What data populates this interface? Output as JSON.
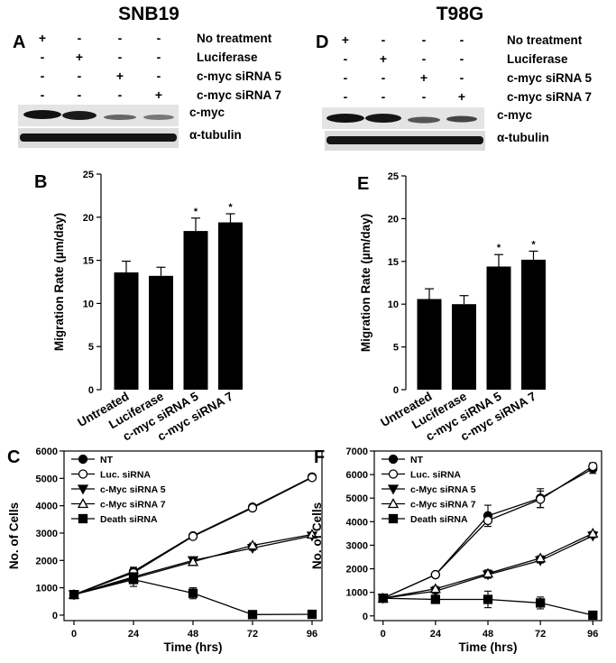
{
  "figure": {
    "titles": [
      "SNB19",
      "T98G"
    ],
    "letters": [
      "A",
      "D"
    ],
    "treatments": [
      "No treatment",
      "Luciferase",
      "c-myc siRNA 5",
      "c-myc siRNA 7"
    ],
    "signs": [
      [
        "+",
        "-",
        "-",
        "-"
      ],
      [
        "-",
        "+",
        "-",
        "-"
      ],
      [
        "-",
        "-",
        "+",
        "-"
      ],
      [
        "-",
        "-",
        "-",
        "+"
      ]
    ],
    "bands": [
      "c-myc",
      "α-tubulin"
    ]
  },
  "chart_data": [
    {
      "type": "bar",
      "letter": "B",
      "y_label": "Migration Rate (µm/day)",
      "categories": [
        "Untreated",
        "Luciferase",
        "c-myc siRNA 5",
        "c-myc siRNA 7"
      ],
      "values": [
        13.6,
        13.2,
        18.4,
        19.4
      ],
      "errors": [
        1.3,
        1.0,
        1.5,
        1.0
      ],
      "color": "#000000",
      "annotations": [
        {
          "index": 2,
          "text": "*"
        },
        {
          "index": 3,
          "text": "*"
        }
      ],
      "ylim": [
        0,
        25
      ],
      "yticks": [
        0,
        5,
        10,
        15,
        20,
        25
      ]
    },
    {
      "type": "bar",
      "letter": "E",
      "y_label": "Migration Rate (µm/day)",
      "categories": [
        "Untreated",
        "Luciferase",
        "c-myc siRNA 5",
        "c-myc siRNA 7"
      ],
      "values": [
        10.6,
        10.0,
        14.4,
        15.2
      ],
      "errors": [
        1.2,
        1.0,
        1.4,
        1.0
      ],
      "color": "#000000",
      "annotations": [
        {
          "index": 2,
          "text": "*"
        },
        {
          "index": 3,
          "text": "*"
        }
      ],
      "ylim": [
        0,
        25
      ],
      "yticks": [
        0,
        5,
        10,
        15,
        20,
        25
      ]
    },
    {
      "type": "line",
      "letter": "C",
      "x_label": "Time (hrs)",
      "y_label": "No. of Cells",
      "x": [
        0,
        24,
        48,
        72,
        96
      ],
      "series": [
        {
          "name": "NT",
          "color": "#000000",
          "marker": "circle-filled",
          "values": [
            750,
            1600,
            2900,
            3950,
            5050
          ],
          "errors": [
            60,
            150,
            60,
            80,
            50
          ]
        },
        {
          "name": "Luc. siRNA",
          "color": "#000000",
          "marker": "circle-open",
          "values": [
            750,
            1550,
            2880,
            3920,
            5030
          ],
          "errors": [
            60,
            150,
            60,
            80,
            50
          ]
        },
        {
          "name": "c-Myc siRNA 5",
          "color": "#000000",
          "marker": "triangle-down-filled",
          "values": [
            750,
            1400,
            2000,
            2450,
            2900
          ],
          "errors": [
            60,
            100,
            80,
            80,
            60
          ]
        },
        {
          "name": "c-Myc siRNA 7",
          "color": "#000000",
          "marker": "triangle-up-open",
          "values": [
            750,
            1350,
            1950,
            2550,
            2950
          ],
          "errors": [
            60,
            100,
            80,
            80,
            60
          ]
        },
        {
          "name": "Death siRNA",
          "color": "#000000",
          "marker": "square-filled",
          "values": [
            750,
            1300,
            800,
            20,
            30
          ],
          "errors": [
            100,
            250,
            200,
            0,
            0
          ]
        }
      ],
      "xlim": [
        -4,
        100
      ],
      "xticks": [
        0,
        24,
        48,
        72,
        96
      ],
      "ylim": [
        -200,
        6000
      ],
      "yticks": [
        0,
        1000,
        2000,
        3000,
        4000,
        5000,
        6000
      ]
    },
    {
      "type": "line",
      "letter": "F",
      "x_label": "Time (hrs)",
      "y_label": "No. of Cells",
      "x": [
        0,
        24,
        48,
        72,
        96
      ],
      "series": [
        {
          "name": "NT",
          "color": "#000000",
          "marker": "circle-filled",
          "values": [
            750,
            1750,
            4250,
            5000,
            6250
          ],
          "errors": [
            50,
            100,
            450,
            400,
            200
          ]
        },
        {
          "name": "Luc. siRNA",
          "color": "#000000",
          "marker": "circle-open",
          "values": [
            750,
            1750,
            4050,
            4950,
            6350
          ],
          "errors": [
            50,
            80,
            250,
            350,
            150
          ]
        },
        {
          "name": "c-Myc siRNA 5",
          "color": "#000000",
          "marker": "triangle-down-filled",
          "values": [
            750,
            1050,
            1750,
            2350,
            3400
          ],
          "errors": [
            60,
            100,
            150,
            100,
            80
          ]
        },
        {
          "name": "c-Myc siRNA 7",
          "color": "#000000",
          "marker": "triangle-up-open",
          "values": [
            750,
            1150,
            1800,
            2450,
            3500
          ],
          "errors": [
            60,
            100,
            150,
            100,
            80
          ]
        },
        {
          "name": "Death siRNA",
          "color": "#000000",
          "marker": "square-filled",
          "values": [
            750,
            700,
            700,
            550,
            30
          ],
          "errors": [
            100,
            150,
            350,
            250,
            0
          ]
        }
      ],
      "xlim": [
        -4,
        100
      ],
      "xticks": [
        0,
        24,
        48,
        72,
        96
      ],
      "ylim": [
        -200,
        7000
      ],
      "yticks": [
        0,
        1000,
        2000,
        3000,
        4000,
        5000,
        6000,
        7000
      ]
    }
  ]
}
